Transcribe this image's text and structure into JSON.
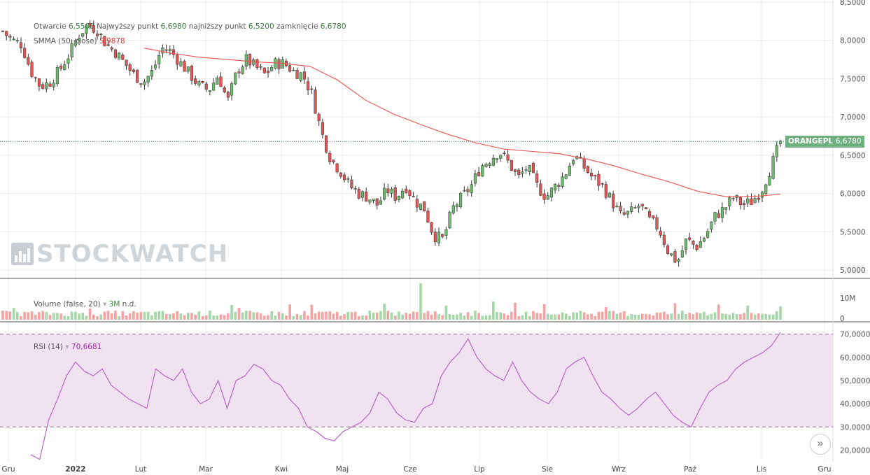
{
  "legend": {
    "ohlc_text": {
      "open_label": "Otwarcie",
      "open": "6,5500",
      "high_label": "Najwyższy punkt",
      "high": "6,6980",
      "low_label": "najniższy punkt",
      "low": "6,5200",
      "close_label": "zamknięcie",
      "close": "6,6780"
    },
    "smma_label": "SMMA (50, close)",
    "smma_value": "5,9878",
    "volume_label": "Volume (false, 20)",
    "volume_value": "3M",
    "volume_extra": "n.d.",
    "rsi_label": "RSI (14)",
    "rsi_value": "70,6681"
  },
  "price_tag": {
    "symbol": "ORANGEPL",
    "value": "6,6780"
  },
  "watermark": "STOCKWATCH",
  "scroll_icon": "»",
  "colors": {
    "up": "#6ebb6e",
    "down": "#e15555",
    "smma": "#ef5350",
    "rsi": "#b05cc0",
    "rsi_band": "#f1e2f1",
    "volume_up": "#a5d6a7",
    "volume_down": "#f4a3a3",
    "tag": "#6fb080"
  },
  "chart_data": [
    {
      "type": "candlestick",
      "symbol": "ORANGEPL",
      "price_axis": {
        "ticks": [
          "5,0000",
          "5,5000",
          "6,0000",
          "6,5000",
          "7,0000",
          "7,5000",
          "8,0000",
          "8,5000"
        ],
        "ylim": [
          5.0,
          8.5
        ]
      },
      "x_ticks": [
        "Gru",
        "2022",
        "Lut",
        "Mar",
        "Kwi",
        "Maj",
        "Cze",
        "Lip",
        "Sie",
        "Wrz",
        "Paź",
        "Lis",
        "Gru"
      ],
      "last_close": 6.678,
      "series": [
        {
          "name": "OHLC",
          "sampled_close": [
            8.12,
            8.0,
            7.95,
            7.6,
            7.4,
            7.45,
            7.6,
            7.8,
            8.05,
            8.2,
            8.15,
            7.95,
            7.85,
            7.7,
            7.55,
            7.45,
            7.6,
            7.9,
            7.85,
            7.7,
            7.55,
            7.4,
            7.35,
            7.55,
            7.2,
            7.6,
            7.75,
            7.65,
            7.55,
            7.7,
            7.7,
            7.6,
            7.55,
            7.3,
            6.8,
            6.45,
            6.3,
            6.1,
            6.0,
            5.95,
            5.85,
            6.05,
            5.95,
            6.1,
            5.9,
            5.8,
            5.45,
            5.4,
            5.8,
            5.95,
            6.1,
            6.35,
            6.45,
            6.55,
            6.4,
            6.2,
            6.35,
            6.1,
            5.95,
            6.1,
            6.25,
            6.5,
            6.35,
            6.2,
            6.1,
            5.9,
            5.7,
            5.75,
            5.85,
            5.65,
            5.55,
            5.25,
            5.1,
            5.4,
            5.3,
            5.45,
            5.7,
            5.8,
            5.95,
            5.85,
            5.9,
            6.05,
            6.35,
            6.68
          ]
        },
        {
          "name": "SMMA (50, close)",
          "values": [
            7.9,
            7.83,
            7.78,
            7.75,
            7.72,
            7.7,
            7.66,
            7.48,
            7.22,
            7.04,
            6.9,
            6.77,
            6.66,
            6.58,
            6.55,
            6.52,
            6.45,
            6.36,
            6.25,
            6.15,
            6.03,
            5.96,
            5.96,
            5.99
          ]
        }
      ]
    },
    {
      "type": "bar",
      "title": "Volume (false, 20)",
      "axis_ticks": [
        "10M",
        "0"
      ],
      "peak_label": "Cze",
      "note": "volume bars (green = up day, red = down day)"
    },
    {
      "type": "line",
      "title": "RSI (14)",
      "axis_ticks": [
        "20,0000",
        "30,0000",
        "40,0000",
        "50,0000",
        "60,0000",
        "70,0000"
      ],
      "ylim": [
        15,
        75
      ],
      "bands": [
        30,
        70
      ],
      "values": [
        18,
        16,
        33,
        42,
        52,
        58,
        54,
        52,
        55,
        48,
        45,
        42,
        40,
        38,
        55,
        52,
        50,
        55,
        45,
        40,
        42,
        50,
        38,
        50,
        52,
        57,
        55,
        50,
        48,
        42,
        38,
        30,
        28,
        25,
        24,
        28,
        30,
        32,
        36,
        45,
        42,
        36,
        33,
        32,
        38,
        40,
        52,
        58,
        62,
        68,
        60,
        55,
        52,
        50,
        58,
        50,
        45,
        42,
        40,
        45,
        55,
        58,
        60,
        52,
        45,
        42,
        38,
        35,
        38,
        42,
        45,
        40,
        35,
        32,
        30,
        38,
        45,
        48,
        50,
        55,
        58,
        60,
        62,
        65,
        70.67
      ]
    }
  ]
}
